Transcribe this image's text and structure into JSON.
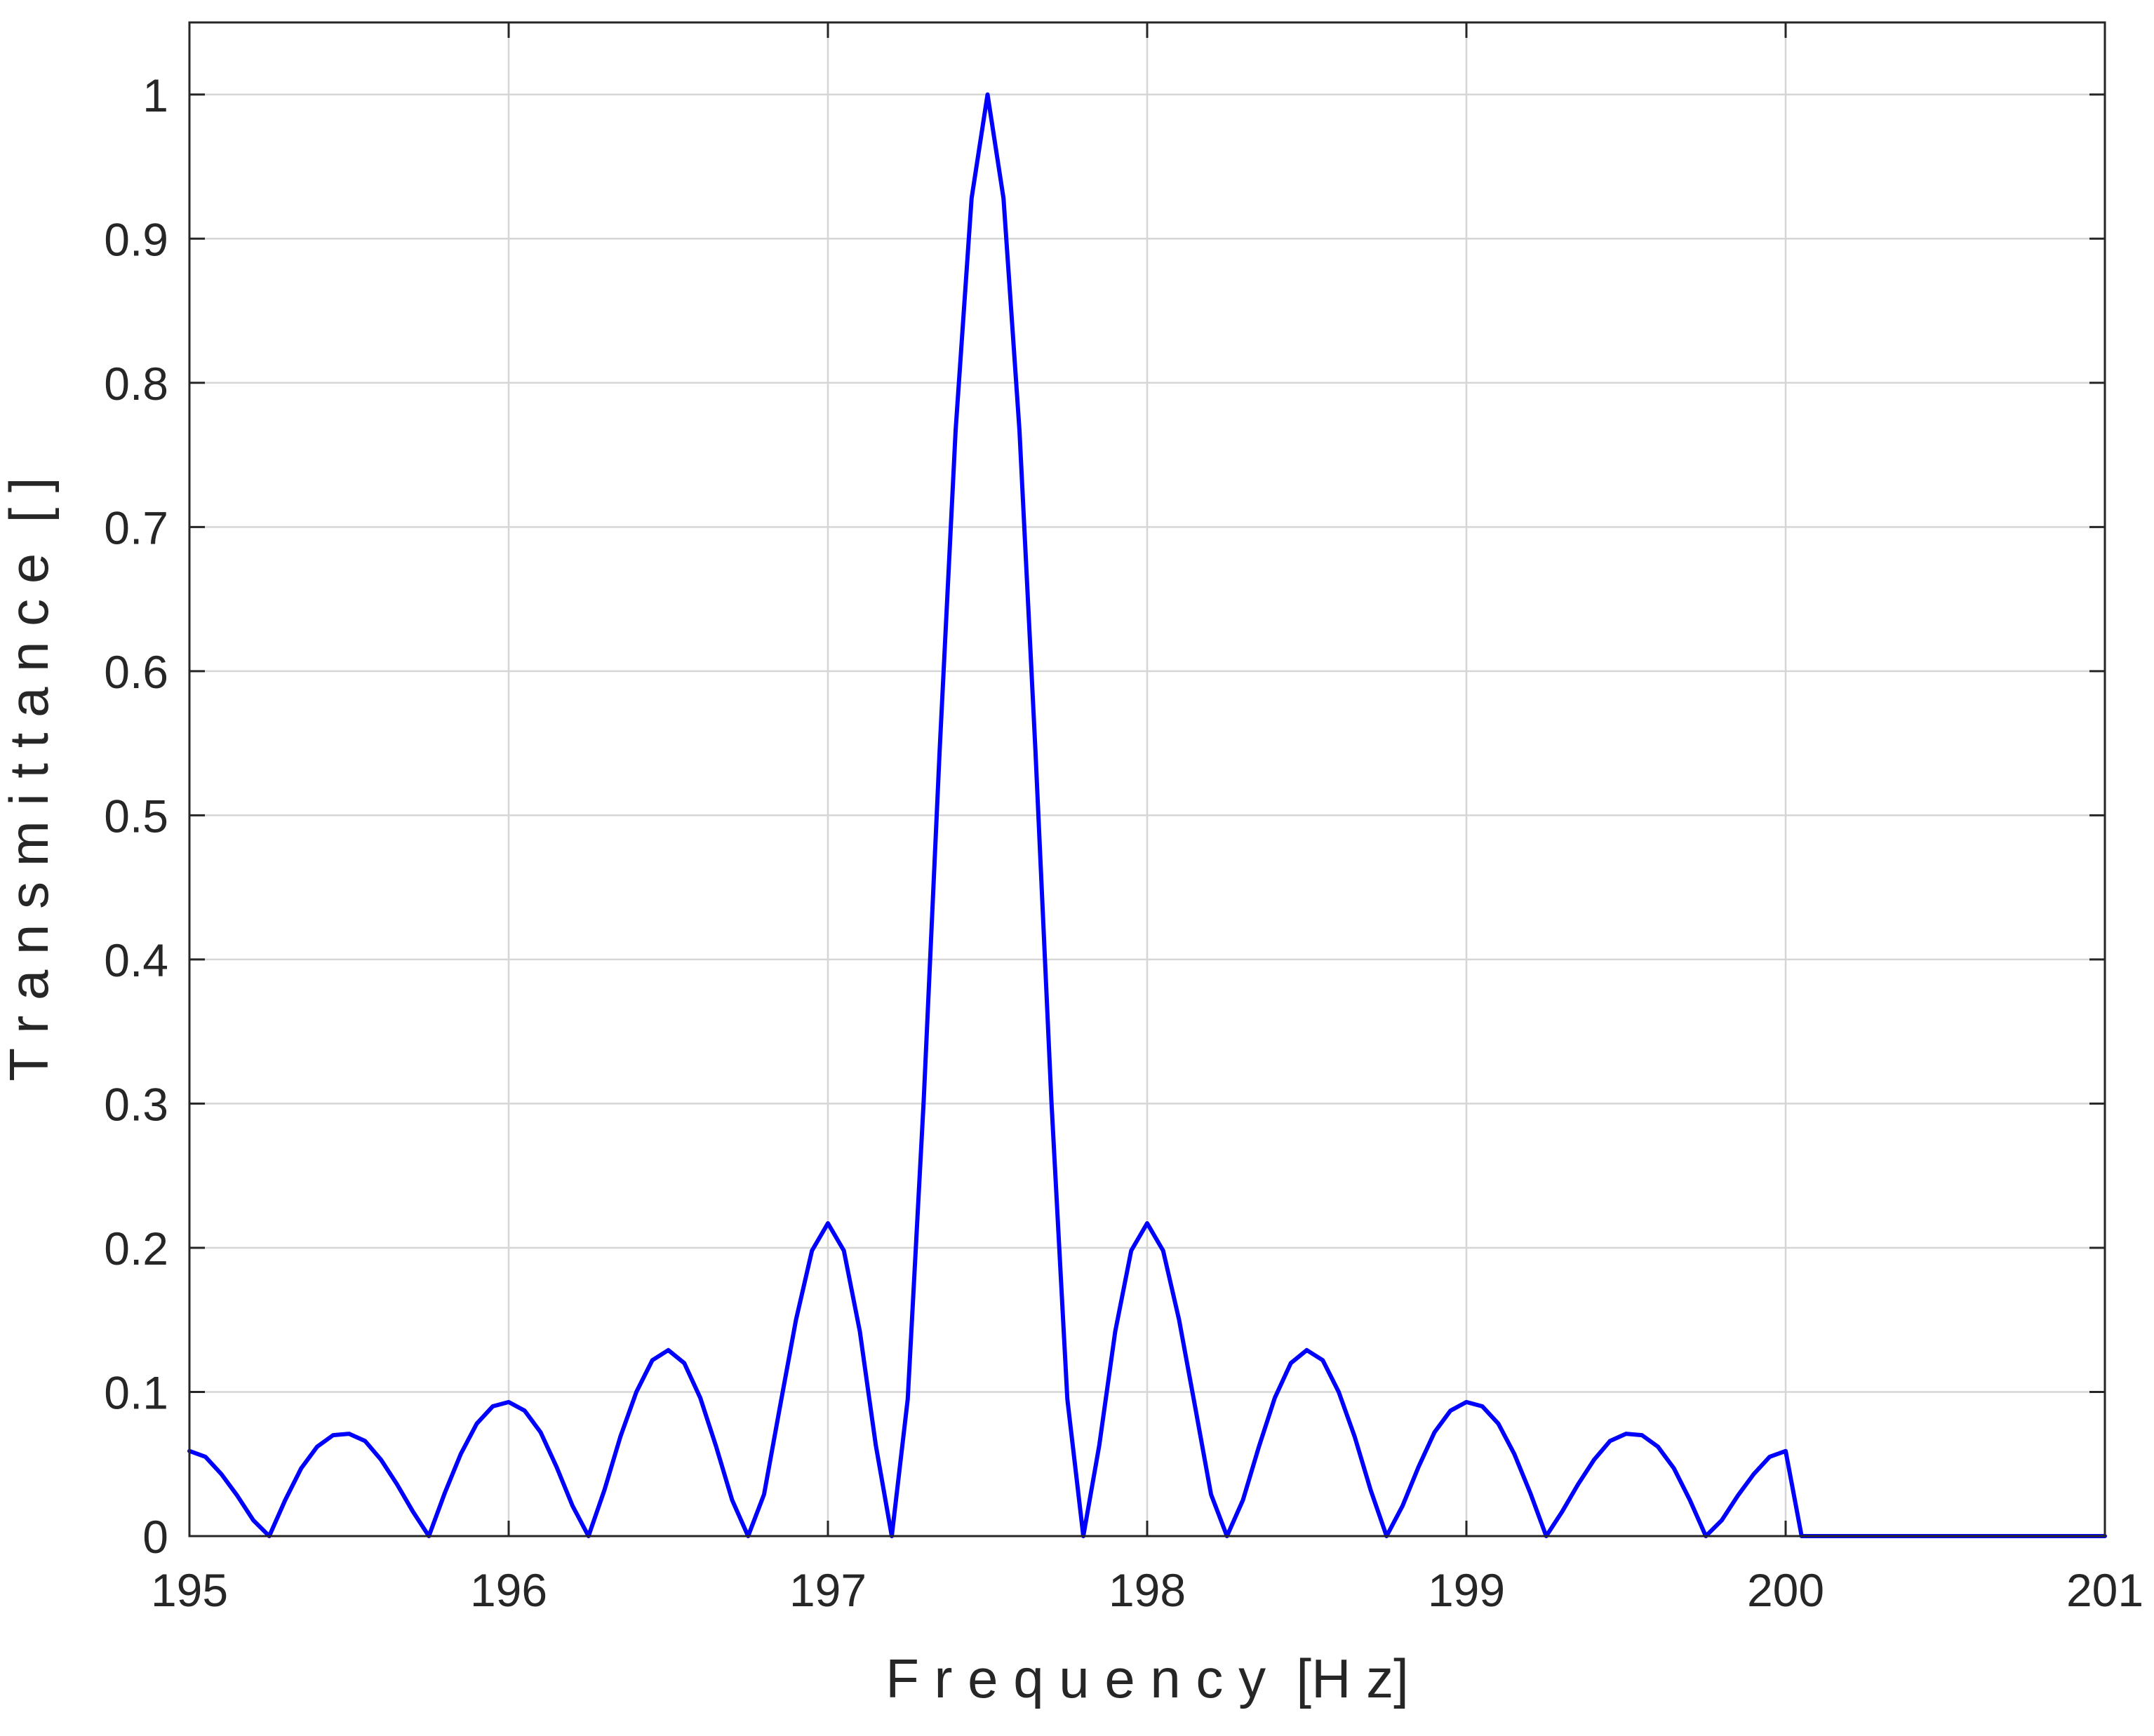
{
  "chart_data": {
    "type": "line",
    "title": "",
    "xlabel": "F r e q u e n c y  [H z]",
    "ylabel": "T r a n s m i t t a n c e  [ ]",
    "xlim": [
      195,
      201
    ],
    "ylim": [
      0,
      1.05
    ],
    "xticks": [
      195,
      196,
      197,
      198,
      199,
      200,
      201
    ],
    "xtick_labels": [
      "195",
      "196",
      "197",
      "198",
      "199",
      "200",
      "201"
    ],
    "yticks": [
      0,
      0.1,
      0.2,
      0.3,
      0.4,
      0.5,
      0.6,
      0.7,
      0.8,
      0.9,
      1
    ],
    "ytick_labels": [
      "0",
      "0.1",
      "0.2",
      "0.3",
      "0.4",
      "0.5",
      "0.6",
      "0.7",
      "0.8",
      "0.9",
      "1"
    ],
    "grid": true,
    "legend": "none",
    "series": [
      {
        "color": "#0000ff",
        "x": [
          195.0,
          195.05,
          195.1,
          195.15,
          195.2,
          195.25,
          195.3,
          195.35,
          195.4,
          195.45,
          195.5,
          195.55,
          195.6,
          195.65,
          195.7,
          195.75,
          195.8,
          195.85,
          195.9,
          195.95,
          196.0,
          196.05,
          196.1,
          196.15,
          196.2,
          196.25,
          196.3,
          196.35,
          196.4,
          196.45,
          196.5,
          196.55,
          196.6,
          196.65,
          196.7,
          196.75,
          196.8,
          196.85,
          196.9,
          196.95,
          197.0,
          197.05,
          197.1,
          197.15,
          197.2,
          197.25,
          197.3,
          197.35,
          197.4,
          197.45,
          197.5,
          197.55,
          197.6,
          197.65,
          197.7,
          197.75,
          197.8,
          197.85,
          197.9,
          197.95,
          198.0,
          198.05,
          198.1,
          198.15,
          198.2,
          198.25,
          198.3,
          198.35,
          198.4,
          198.45,
          198.5,
          198.55,
          198.6,
          198.65,
          198.7,
          198.75,
          198.8,
          198.85,
          198.9,
          198.95,
          199.0,
          199.05,
          199.1,
          199.15,
          199.2,
          199.25,
          199.3,
          199.35,
          199.4,
          199.45,
          199.5,
          199.55,
          199.6,
          199.65,
          199.7,
          199.75,
          199.8,
          199.85,
          199.9,
          199.95,
          200.0,
          200.05,
          200.1,
          200.15,
          200.2,
          200.25,
          200.3,
          200.35,
          200.4,
          200.45,
          200.5,
          200.55,
          200.6,
          200.65,
          200.7,
          200.75,
          200.8,
          200.85,
          200.9,
          200.95,
          201.0
        ],
        "y": [
          0.059,
          0.055,
          0.043,
          0.028,
          0.011,
          0.0,
          0.025,
          0.047,
          0.062,
          0.07,
          0.071,
          0.066,
          0.053,
          0.036,
          0.017,
          0.0,
          0.03,
          0.057,
          0.078,
          0.09,
          0.093,
          0.087,
          0.072,
          0.048,
          0.021,
          0.0,
          0.032,
          0.069,
          0.1,
          0.122,
          0.129,
          0.12,
          0.096,
          0.062,
          0.025,
          0.0,
          0.029,
          0.09,
          0.15,
          0.198,
          0.217,
          0.198,
          0.142,
          0.063,
          0.0,
          0.095,
          0.302,
          0.545,
          0.767,
          0.928,
          1.0,
          0.928,
          0.767,
          0.545,
          0.302,
          0.095,
          0.0,
          0.063,
          0.142,
          0.198,
          0.217,
          0.198,
          0.15,
          0.09,
          0.029,
          0.0,
          0.025,
          0.062,
          0.096,
          0.12,
          0.129,
          0.122,
          0.1,
          0.069,
          0.032,
          0.0,
          0.021,
          0.048,
          0.072,
          0.087,
          0.093,
          0.09,
          0.078,
          0.057,
          0.03,
          0.0,
          0.017,
          0.036,
          0.053,
          0.066,
          0.071,
          0.07,
          0.062,
          0.047,
          0.025,
          0.0,
          0.011,
          0.028,
          0.043,
          0.055,
          0.059,
          0.0,
          0.0,
          0.0,
          0.0,
          0.0,
          0.0,
          0.0,
          0.0,
          0.0,
          0.0,
          0.0,
          0.0,
          0.0,
          0.0,
          0.0,
          0.0,
          0.0,
          0.0,
          0.0,
          0.0
        ]
      }
    ]
  }
}
